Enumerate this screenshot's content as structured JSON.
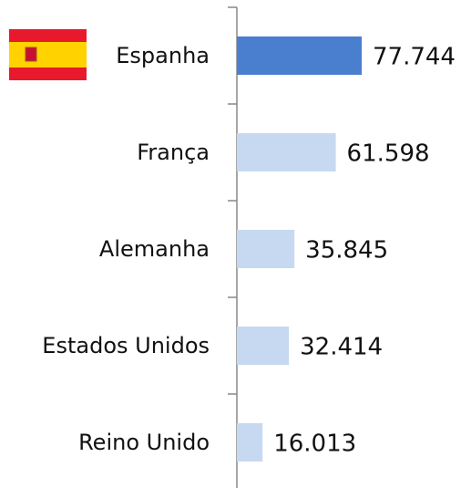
{
  "chart_data": {
    "type": "barh",
    "categories": [
      "Espanha",
      "França",
      "Alemanha",
      "Estados Unidos",
      "Reino Unido"
    ],
    "values": [
      77744,
      61598,
      35845,
      32414,
      16013
    ],
    "value_labels": [
      "77.744",
      "61.598",
      "35.845",
      "32.414",
      "16.013"
    ],
    "colors": [
      "#4a7fcf",
      "#c6d9f1",
      "#c6d9f1",
      "#c6d9f1",
      "#c6d9f1"
    ]
  }
}
